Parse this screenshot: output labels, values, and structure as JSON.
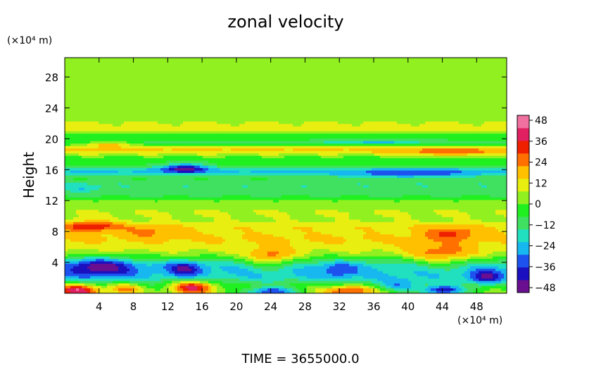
{
  "chart_data": {
    "type": "heatmap",
    "title": "zonal velocity",
    "ylabel": "Height",
    "y_unit": "(×10⁴ m)",
    "x_unit": "(×10⁴ m)",
    "footer": "TIME  =  3655000.0",
    "x_ticks": [
      "4",
      "8",
      "12",
      "16",
      "20",
      "24",
      "28",
      "32",
      "36",
      "40",
      "44",
      "48"
    ],
    "y_ticks": [
      "4",
      "8",
      "12",
      "16",
      "20",
      "24",
      "28"
    ],
    "xlim": [
      0,
      51.5
    ],
    "ylim": [
      0,
      30.5
    ],
    "colorbar": {
      "ticks": [
        "48",
        "36",
        "24",
        "12",
        "0",
        "−12",
        "−24",
        "−36",
        "−48"
      ],
      "range": [
        -48,
        48
      ],
      "colors": [
        "#6a0f8f",
        "#1a10c0",
        "#1d52ef",
        "#16b8ef",
        "#20e0c0",
        "#40e060",
        "#20f020",
        "#90f020",
        "#e8ee10",
        "#ffc000",
        "#ff7000",
        "#ee2000",
        "#e02060",
        "#f070a0"
      ]
    },
    "field": {
      "bands": [
        {
          "y": 0.8,
          "w": 1.2,
          "v": -2
        },
        {
          "y": 2.0,
          "w": 1.0,
          "v": -15
        },
        {
          "y": 3.5,
          "w": 1.3,
          "v": -22
        },
        {
          "y": 5.5,
          "w": 1.4,
          "v": 6
        },
        {
          "y": 7.2,
          "w": 1.0,
          "v": 10
        },
        {
          "y": 8.6,
          "w": 0.7,
          "v": 8
        },
        {
          "y": 10.3,
          "w": 0.8,
          "v": 4
        },
        {
          "y": 11.6,
          "w": 0.6,
          "v": 2
        },
        {
          "y": 12.6,
          "w": 0.7,
          "v": -9
        },
        {
          "y": 14.0,
          "w": 0.9,
          "v": -16
        },
        {
          "y": 15.8,
          "w": 0.7,
          "v": -24
        },
        {
          "y": 17.2,
          "w": 0.6,
          "v": -8
        },
        {
          "y": 18.5,
          "w": 0.6,
          "v": 12
        },
        {
          "y": 19.5,
          "w": 0.5,
          "v": -12
        },
        {
          "y": 20.4,
          "w": 0.4,
          "v": -8
        },
        {
          "y": 21.2,
          "w": 0.4,
          "v": 8
        },
        {
          "y": 22.0,
          "w": 0.5,
          "v": 4
        }
      ],
      "blobs": [
        {
          "x": 1.5,
          "y": 0.4,
          "sx": 2.5,
          "sy": 0.8,
          "v": 40
        },
        {
          "x": 7,
          "y": 0.6,
          "sx": 2,
          "sy": 0.7,
          "v": 22
        },
        {
          "x": 15,
          "y": 0.8,
          "sx": 2.5,
          "sy": 0.9,
          "v": 38
        },
        {
          "x": 24,
          "y": 0.2,
          "sx": 3,
          "sy": 0.6,
          "v": -34
        },
        {
          "x": 33,
          "y": 0.3,
          "sx": 3,
          "sy": 0.7,
          "v": 30
        },
        {
          "x": 44,
          "y": 0.4,
          "sx": 2.5,
          "sy": 0.6,
          "v": -40
        },
        {
          "x": 39,
          "y": 1.0,
          "sx": 2.5,
          "sy": 0.8,
          "v": -20
        },
        {
          "x": 4,
          "y": 3.4,
          "sx": 4,
          "sy": 1.3,
          "v": -26
        },
        {
          "x": 14,
          "y": 3.2,
          "sx": 2,
          "sy": 1.0,
          "v": -22
        },
        {
          "x": 24,
          "y": 4.5,
          "sx": 2.8,
          "sy": 1.3,
          "v": 24
        },
        {
          "x": 32,
          "y": 3.0,
          "sx": 2,
          "sy": 1.0,
          "v": -14
        },
        {
          "x": 44,
          "y": 4.8,
          "sx": 4,
          "sy": 1.6,
          "v": 20
        },
        {
          "x": 49,
          "y": 2.0,
          "sx": 2,
          "sy": 1.0,
          "v": -24
        },
        {
          "x": 3,
          "y": 8.7,
          "sx": 3.5,
          "sy": 0.7,
          "v": 22
        },
        {
          "x": 10,
          "y": 8.0,
          "sx": 3,
          "sy": 0.8,
          "v": 10
        },
        {
          "x": 45,
          "y": 7.8,
          "sx": 3,
          "sy": 0.8,
          "v": 16
        },
        {
          "x": 14,
          "y": 16.2,
          "sx": 2.5,
          "sy": 0.6,
          "v": -30
        },
        {
          "x": 40,
          "y": 15.4,
          "sx": 8,
          "sy": 0.5,
          "v": -16
        },
        {
          "x": 5,
          "y": 19.3,
          "sx": 3,
          "sy": 0.4,
          "v": 20
        },
        {
          "x": 45,
          "y": 18.3,
          "sx": 5,
          "sy": 0.5,
          "v": 14
        },
        {
          "x": 36,
          "y": 19.6,
          "sx": 6,
          "sy": 0.3,
          "v": -14
        },
        {
          "x": 2,
          "y": 13.5,
          "sx": 2,
          "sy": 0.5,
          "v": -10
        }
      ]
    }
  }
}
